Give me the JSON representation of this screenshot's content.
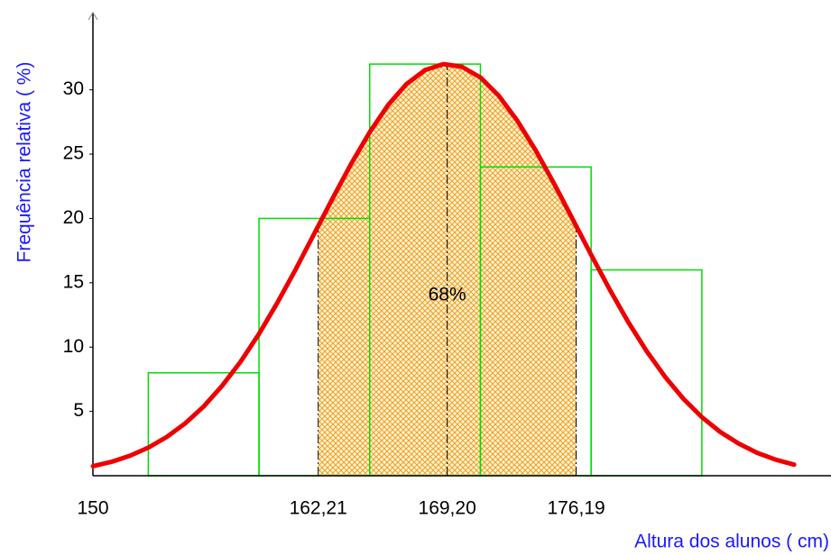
{
  "chart_data": {
    "type": "histogram",
    "xlabel": "Altura dos alunos ( cm)",
    "ylabel": "Frequência relativa ( %)",
    "bins": [
      153,
      159,
      165,
      171,
      177,
      183
    ],
    "values": [
      8,
      20,
      32,
      24,
      16
    ],
    "color": "#00dd00",
    "curve": {
      "color": "#ee0000",
      "x": [
        150,
        151,
        152,
        153,
        154,
        155,
        156,
        157,
        158,
        159,
        160,
        161,
        162,
        163,
        164,
        165,
        166,
        167,
        168,
        169,
        170,
        171,
        172,
        173,
        174,
        175,
        176,
        177,
        178,
        179,
        180,
        181,
        182,
        183,
        184,
        185,
        186,
        187,
        188
      ],
      "values": [
        0.74,
        1.08,
        1.55,
        2.18,
        3.01,
        4.07,
        5.38,
        6.98,
        8.86,
        11.03,
        13.46,
        16.08,
        18.83,
        21.59,
        24.26,
        26.71,
        28.82,
        30.45,
        31.53,
        32.0,
        31.79,
        30.96,
        29.53,
        27.6,
        25.28,
        22.68,
        19.94,
        17.17,
        14.49,
        11.98,
        9.7,
        7.7,
        5.98,
        4.56,
        3.4,
        2.49,
        1.78,
        1.25,
        0.86
      ]
    },
    "shaded_range": [
      162.21,
      176.19
    ],
    "shade_color": "#f5a623",
    "annotation": "68%",
    "xlim": [
      150,
      190
    ],
    "ylim": [
      0,
      36
    ],
    "xticks": [
      150,
      {
        "value": 162.21,
        "label": "162,21"
      },
      {
        "value": 169.2,
        "label": "169,20"
      },
      {
        "value": 176.19,
        "label": "176,19"
      }
    ],
    "yticks": [
      5,
      10,
      15,
      20,
      25,
      30
    ]
  }
}
